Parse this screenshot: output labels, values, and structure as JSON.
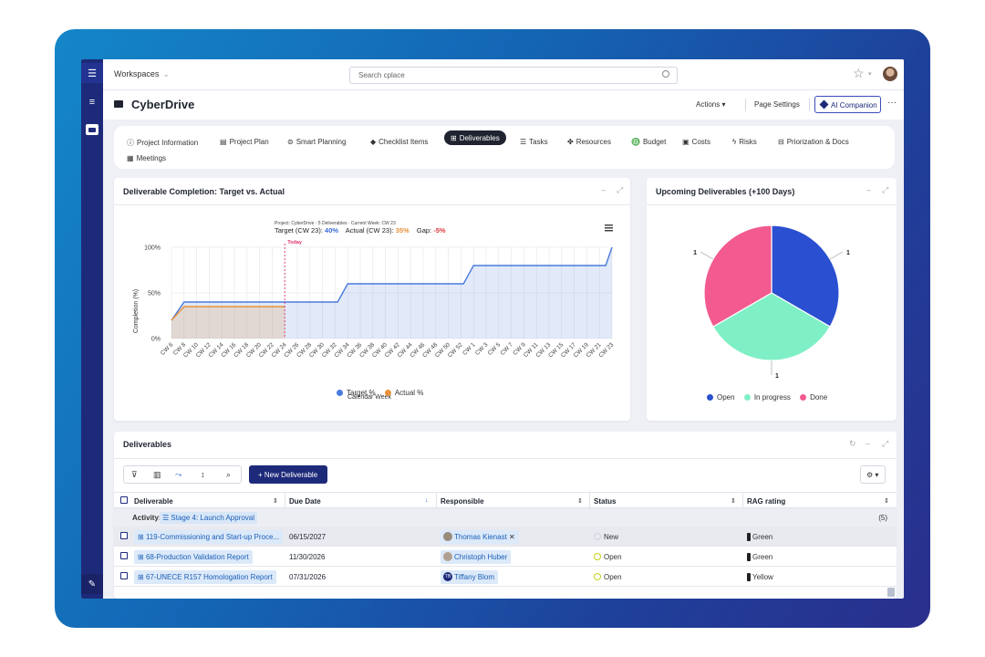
{
  "topbar": {
    "workspaces_label": "Workspaces",
    "search_placeholder": "Search cplace"
  },
  "title": {
    "name": "CyberDrive",
    "actions_label": "Actions",
    "page_settings_label": "Page Settings",
    "ai_label": "AI Companion"
  },
  "tabs": [
    {
      "label": "Project Information",
      "icon": "info-icon"
    },
    {
      "label": "Project Plan",
      "icon": "plan-icon"
    },
    {
      "label": "Smart Planning",
      "icon": "smart-planning-icon"
    },
    {
      "label": "Checklist Items",
      "icon": "diamond-icon"
    },
    {
      "label": "Deliverables",
      "icon": "deliverables-icon",
      "active": true
    },
    {
      "label": "Tasks",
      "icon": "tasks-icon"
    },
    {
      "label": "Resources",
      "icon": "resources-icon"
    },
    {
      "label": "Budget",
      "icon": "budget-icon"
    },
    {
      "label": "Costs",
      "icon": "costs-icon"
    },
    {
      "label": "Risks",
      "icon": "risks-icon"
    },
    {
      "label": "Priorization & Docs",
      "icon": "docs-icon"
    },
    {
      "label": "Meetings",
      "icon": "calendar-icon"
    }
  ],
  "completion_panel": {
    "title": "Deliverable Completion: Target vs. Actual",
    "subtitle": "Project: CyberDrive · 5 Deliverables · Current Week: CW 23",
    "target_text": "Target (CW 23):",
    "target_value": "40%",
    "actual_text": "Actual (CW 23):",
    "actual_value": "35%",
    "gap_text": "Gap:",
    "gap_value": "-5%",
    "today_label": "Today"
  },
  "pie_panel": {
    "title": "Upcoming Deliverables (+100 Days)"
  },
  "chart_data": [
    {
      "type": "area",
      "xlabel": "Calendar Week",
      "ylabel": "Completion (%)",
      "ylim": [
        0,
        100
      ],
      "yticks": [
        "0%",
        "50%",
        "100%"
      ],
      "categories": [
        "CW 6",
        "CW 8",
        "CW 10",
        "CW 12",
        "CW 14",
        "CW 16",
        "CW 18",
        "CW 20",
        "CW 22",
        "CW 24",
        "CW 26",
        "CW 28",
        "CW 30",
        "CW 32",
        "CW 34",
        "CW 36",
        "CW 38",
        "CW 40",
        "CW 42",
        "CW 44",
        "CW 46",
        "CW 48",
        "CW 50",
        "CW 52",
        "CW 1",
        "CW 3",
        "CW 5",
        "CW 7",
        "CW 9",
        "CW 11",
        "CW 13",
        "CW 15",
        "CW 17",
        "CW 19",
        "CW 21",
        "CW 23"
      ],
      "series": [
        {
          "name": "Target %",
          "color": "#4a7bdc",
          "values": [
            20,
            40,
            40,
            40,
            40,
            40,
            40,
            40,
            40,
            40,
            40,
            40,
            40,
            40,
            40,
            60,
            60,
            60,
            60,
            60,
            60,
            60,
            60,
            60,
            80,
            80,
            80,
            80,
            80,
            80,
            80,
            80,
            80,
            80,
            80,
            100
          ]
        },
        {
          "name": "Actual %",
          "color": "#e8913a",
          "values": [
            20,
            35,
            35,
            35,
            35,
            35,
            35,
            35,
            35,
            35,
            null,
            null,
            null,
            null,
            null,
            null,
            null,
            null,
            null,
            null,
            null,
            null,
            null,
            null,
            null,
            null,
            null,
            null,
            null,
            null,
            null,
            null,
            null,
            null,
            null,
            null
          ]
        }
      ],
      "target_step_points": [
        [
          0,
          20
        ],
        [
          1,
          40
        ],
        [
          13.2,
          40
        ],
        [
          14,
          60
        ],
        [
          23.2,
          60
        ],
        [
          24,
          80
        ],
        [
          34.5,
          80
        ],
        [
          35,
          100
        ]
      ],
      "actual_step_points": [
        [
          0,
          20
        ],
        [
          1,
          35
        ],
        [
          9,
          35
        ]
      ],
      "today_index": 9,
      "legend": "bottom"
    },
    {
      "type": "pie",
      "categories": [
        "Open",
        "In progress",
        "Done"
      ],
      "values": [
        1,
        1,
        1
      ],
      "colors": [
        "#2a4fd0",
        "#7ff0c6",
        "#f25a90"
      ],
      "legend": "bottom"
    }
  ],
  "table_panel": {
    "title": "Deliverables",
    "new_button": "+ New Deliverable",
    "columns": [
      "Deliverable",
      "Due Date",
      "Responsible",
      "Status",
      "RAG rating"
    ],
    "group": {
      "prefix": "Activity:",
      "name": "Stage 4: Launch Approval",
      "count": "(5)"
    },
    "rows": [
      {
        "deliverable": "119-Commissioning and Start-up Proce...",
        "due": "06/15/2027",
        "responsible": "Thomas Kienast",
        "status": "New",
        "status_color": "#cfd4df",
        "rag": "Green",
        "rag_color": "#1f2430"
      },
      {
        "deliverable": "68-Production Validation Report",
        "due": "11/30/2026",
        "responsible": "Christoph Huber",
        "status": "Open",
        "status_color": "#c6d21a",
        "rag": "Green",
        "rag_color": "#1f2430"
      },
      {
        "deliverable": "67-UNECE R157 Homologation Report",
        "due": "07/31/2026",
        "responsible": "Tiffany Blom",
        "initials": "TB",
        "status": "Open",
        "status_color": "#c6d21a",
        "rag": "Yellow",
        "rag_color": "#1f2430"
      }
    ]
  }
}
